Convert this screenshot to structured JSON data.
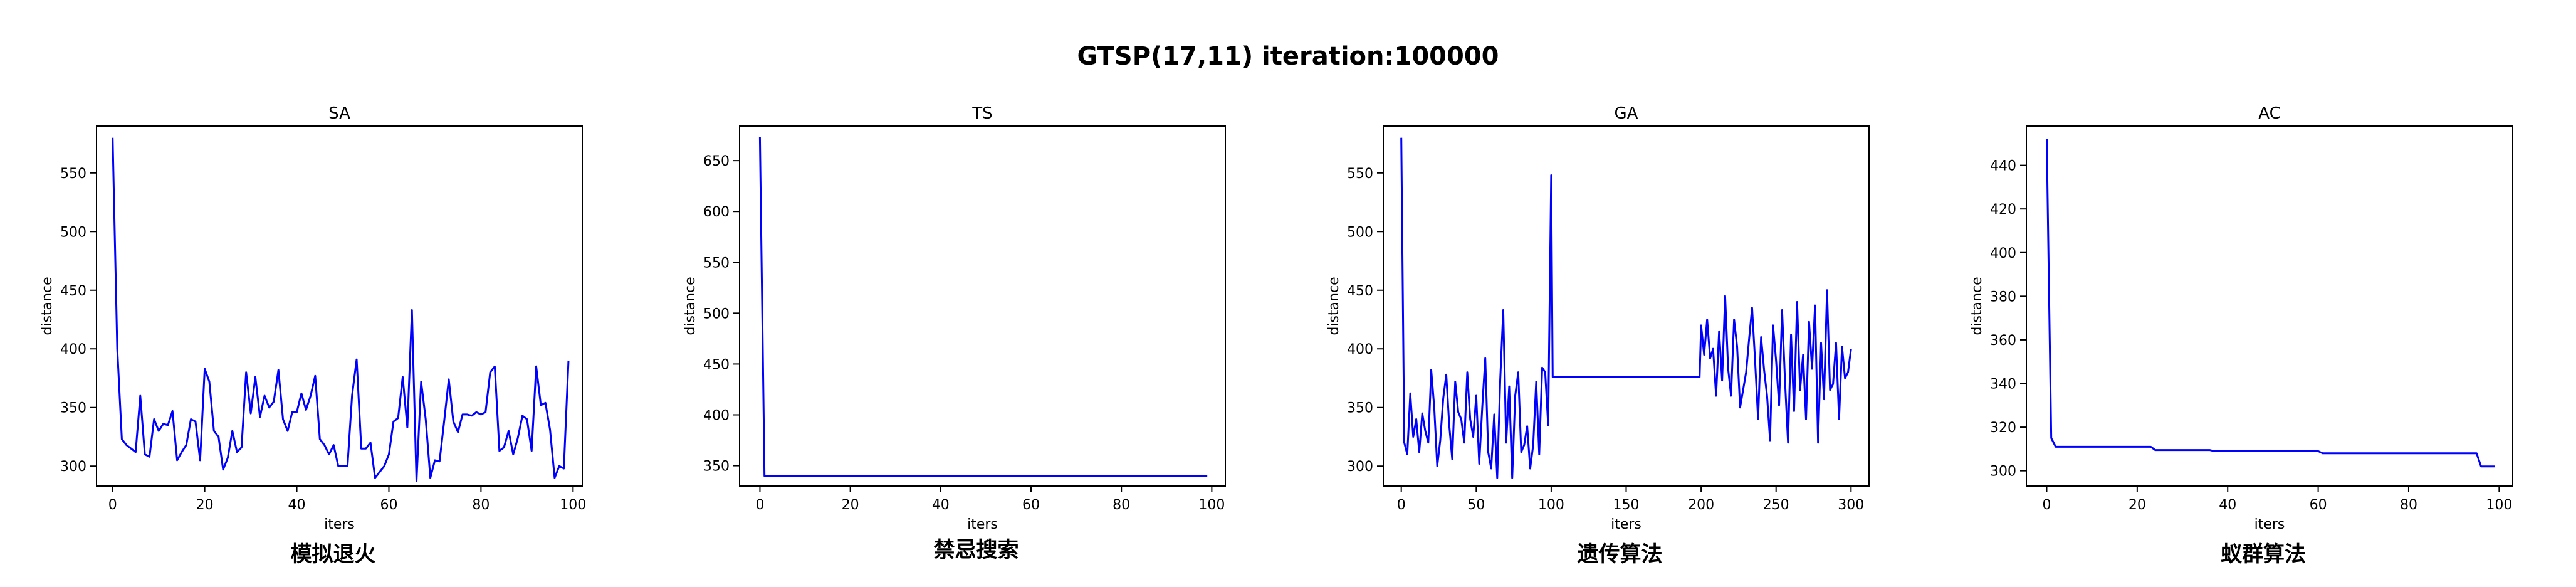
{
  "suptitle": "GTSP(17,11) iteration:100000",
  "line_color": "#0000ff",
  "chart_data": [
    {
      "type": "line",
      "title": "SA",
      "caption": "模拟退火",
      "xlabel": "iters",
      "ylabel": "distance",
      "xlim": [
        -3.5,
        102
      ],
      "ylim": [
        283,
        590
      ],
      "xticks": [
        0,
        20,
        40,
        60,
        80,
        100
      ],
      "yticks": [
        300,
        350,
        400,
        450,
        500,
        550
      ],
      "x": [
        0,
        1,
        2,
        3,
        4,
        5,
        6,
        7,
        8,
        9,
        10,
        11,
        12,
        13,
        14,
        15,
        16,
        17,
        18,
        19,
        20,
        21,
        22,
        23,
        24,
        25,
        26,
        27,
        28,
        29,
        30,
        31,
        32,
        33,
        34,
        35,
        36,
        37,
        38,
        39,
        40,
        41,
        42,
        43,
        44,
        45,
        46,
        47,
        48,
        49,
        50,
        51,
        52,
        53,
        54,
        55,
        56,
        57,
        58,
        59,
        60,
        61,
        62,
        63,
        64,
        65,
        66,
        67,
        68,
        69,
        70,
        71,
        72,
        73,
        74,
        75,
        76,
        77,
        78,
        79,
        80,
        81,
        82,
        83,
        84,
        85,
        86,
        87,
        88,
        89,
        90,
        91,
        92,
        93,
        94,
        95,
        96,
        97,
        98,
        99
      ],
      "y": [
        580,
        400,
        323,
        318,
        315,
        312,
        360,
        310,
        308,
        340,
        330,
        336,
        335,
        347,
        305,
        312,
        318,
        340,
        338,
        305,
        383,
        372,
        330,
        325,
        297,
        307,
        330,
        312,
        316,
        380,
        345,
        376,
        342,
        360,
        350,
        355,
        382,
        340,
        330,
        346,
        346,
        362,
        348,
        360,
        377,
        323,
        318,
        310,
        318,
        300,
        300,
        300,
        360,
        391,
        315,
        315,
        320,
        290,
        295,
        300,
        310,
        338,
        341,
        376,
        333,
        433,
        287,
        372,
        340,
        290,
        305,
        304,
        338,
        374,
        338,
        329,
        344,
        344,
        343,
        346,
        344,
        346,
        380,
        385,
        313,
        316,
        330,
        310,
        324,
        343,
        340,
        313,
        385,
        352,
        354,
        331,
        290,
        300,
        298,
        390
      ]
    },
    {
      "type": "line",
      "title": "TS",
      "caption": "禁忌搜索",
      "xlabel": "iters",
      "ylabel": "distance",
      "xlim": [
        -4.5,
        103
      ],
      "ylim": [
        330,
        684
      ],
      "xticks": [
        0,
        20,
        40,
        60,
        80,
        100
      ],
      "yticks": [
        350,
        400,
        450,
        500,
        550,
        600,
        650
      ],
      "x": [
        0,
        1,
        99
      ],
      "y": [
        673,
        340,
        340
      ]
    },
    {
      "type": "line",
      "title": "GA",
      "caption": "遗传算法",
      "xlabel": "iters",
      "ylabel": "distance",
      "xlim": [
        -12,
        312
      ],
      "ylim": [
        283,
        590
      ],
      "xticks": [
        0,
        50,
        100,
        150,
        200,
        250,
        300
      ],
      "yticks": [
        300,
        350,
        400,
        450,
        500,
        550
      ],
      "x": [
        0,
        2,
        4,
        6,
        8,
        10,
        12,
        14,
        16,
        18,
        20,
        22,
        24,
        26,
        28,
        30,
        32,
        34,
        36,
        38,
        40,
        42,
        44,
        46,
        48,
        50,
        52,
        54,
        56,
        58,
        60,
        62,
        64,
        66,
        68,
        70,
        72,
        74,
        76,
        78,
        80,
        82,
        84,
        86,
        88,
        90,
        92,
        94,
        96,
        98,
        100,
        101,
        150,
        199,
        200,
        202,
        204,
        206,
        208,
        210,
        212,
        214,
        216,
        218,
        220,
        222,
        224,
        226,
        228,
        230,
        232,
        234,
        236,
        238,
        240,
        242,
        244,
        246,
        248,
        250,
        252,
        254,
        256,
        258,
        260,
        262,
        264,
        266,
        268,
        270,
        272,
        274,
        276,
        278,
        280,
        282,
        284,
        286,
        288,
        290,
        292,
        294,
        296,
        298,
        300
      ],
      "y": [
        580,
        320,
        310,
        362,
        325,
        340,
        312,
        345,
        330,
        320,
        382,
        350,
        300,
        322,
        358,
        378,
        335,
        306,
        372,
        346,
        340,
        320,
        380,
        340,
        325,
        360,
        302,
        350,
        392,
        312,
        298,
        344,
        290,
        374,
        433,
        320,
        368,
        290,
        360,
        380,
        312,
        318,
        334,
        298,
        318,
        372,
        310,
        384,
        380,
        335,
        548,
        376,
        376,
        376,
        420,
        395,
        425,
        392,
        400,
        360,
        415,
        373,
        445,
        383,
        360,
        425,
        402,
        350,
        365,
        380,
        408,
        435,
        390,
        340,
        410,
        382,
        360,
        322,
        420,
        390,
        352,
        433,
        372,
        320,
        412,
        347,
        440,
        365,
        395,
        340,
        423,
        383,
        437,
        320,
        405,
        357,
        450,
        365,
        370,
        405,
        340,
        402,
        375,
        380,
        400
      ]
    },
    {
      "type": "line",
      "title": "AC",
      "caption": "蚁群算法",
      "xlabel": "iters",
      "ylabel": "distance",
      "xlim": [
        -4.5,
        103
      ],
      "ylim": [
        293,
        458
      ],
      "xticks": [
        0,
        20,
        40,
        60,
        80,
        100
      ],
      "yticks": [
        300,
        320,
        340,
        360,
        380,
        400,
        420,
        440
      ],
      "x": [
        0,
        1,
        2,
        23,
        24,
        36,
        37,
        60,
        61,
        95,
        96,
        99
      ],
      "y": [
        452,
        315,
        311,
        311,
        309.5,
        309.5,
        309,
        309,
        308,
        308,
        302,
        302
      ]
    }
  ]
}
